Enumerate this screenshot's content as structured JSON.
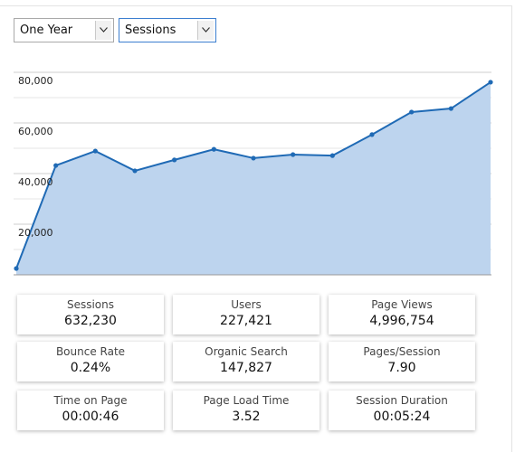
{
  "controls": {
    "period": "One Year",
    "metric": "Sessions"
  },
  "chart_data": {
    "type": "area",
    "color": "#1f6ab5",
    "fill": "#bdd4ee",
    "values": [
      2500,
      43200,
      48900,
      41100,
      45400,
      49600,
      46100,
      47500,
      47100,
      55400,
      64300,
      65700,
      76100
    ],
    "ylim": [
      0,
      80000
    ],
    "yticks": [
      {
        "value": 20000,
        "label": "20,000"
      },
      {
        "value": 40000,
        "label": "40,000"
      },
      {
        "value": 60000,
        "label": "60,000"
      },
      {
        "value": 80000,
        "label": "80,000"
      }
    ],
    "minor_yticks": [
      10000,
      30000,
      50000,
      70000
    ],
    "grid": true
  },
  "stats": [
    {
      "label": "Sessions",
      "value": "632,230"
    },
    {
      "label": "Users",
      "value": "227,421"
    },
    {
      "label": "Page Views",
      "value": "4,996,754"
    },
    {
      "label": "Bounce Rate",
      "value": "0.24%"
    },
    {
      "label": "Organic Search",
      "value": "147,827"
    },
    {
      "label": "Pages/Session",
      "value": "7.90"
    },
    {
      "label": "Time on Page",
      "value": "00:00:46"
    },
    {
      "label": "Page Load Time",
      "value": "3.52"
    },
    {
      "label": "Session Duration",
      "value": "00:05:24"
    }
  ]
}
